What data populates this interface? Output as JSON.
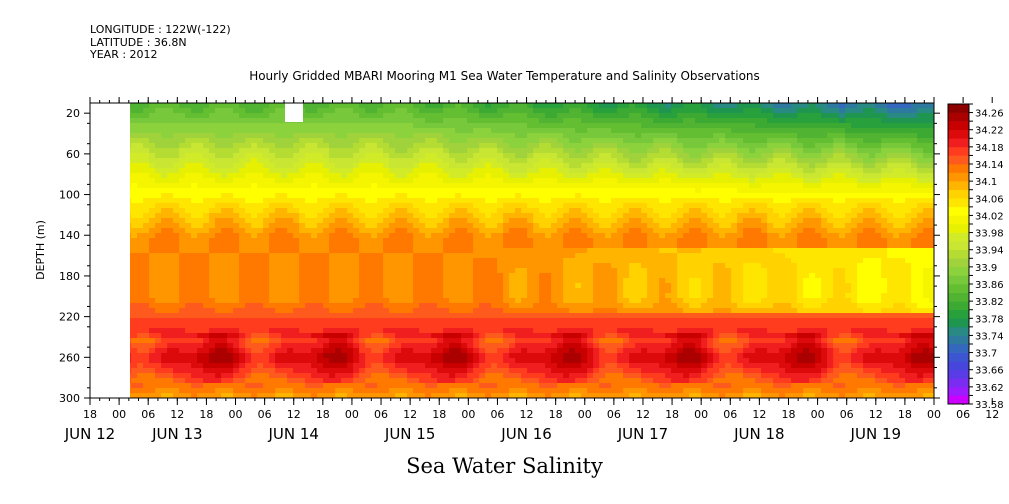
{
  "header": {
    "longitude": "LONGITUDE : 122W(-122)",
    "latitude": "LATITUDE : 36.8N",
    "year": "YEAR : 2012"
  },
  "chart_data": {
    "type": "heatmap",
    "title": "Hourly Gridded MBARI Mooring M1 Sea Water Temperature and Salinity Observations",
    "xlabel": "Sea Water Salinity",
    "ylabel": "DEPTH (m)",
    "x_start": "JUN 12 18:00",
    "x_range_hours": [
      0,
      174
    ],
    "data_start_hour": 6,
    "hour_ticks": [
      "18",
      "00",
      "06",
      "12",
      "18",
      "00",
      "06",
      "12",
      "18",
      "00",
      "06",
      "12",
      "18",
      "00",
      "06",
      "12",
      "18",
      "00",
      "06",
      "12",
      "18",
      "00",
      "06",
      "12",
      "18",
      "00",
      "06",
      "12",
      "18",
      "00",
      "06",
      "12"
    ],
    "date_labels": [
      {
        "text": "JUN 12",
        "hour": 0
      },
      {
        "text": "JUN 13",
        "hour": 18
      },
      {
        "text": "JUN 14",
        "hour": 42
      },
      {
        "text": "JUN 15",
        "hour": 66
      },
      {
        "text": "JUN 16",
        "hour": 90
      },
      {
        "text": "JUN 17",
        "hour": 114
      },
      {
        "text": "JUN 18",
        "hour": 138
      },
      {
        "text": "JUN 19",
        "hour": 162
      }
    ],
    "yticks": [
      20,
      60,
      100,
      140,
      180,
      220,
      260,
      300
    ],
    "ylim": [
      300,
      10
    ],
    "colorbar": {
      "levels": [
        33.58,
        33.6,
        33.62,
        33.64,
        33.66,
        33.68,
        33.7,
        33.72,
        33.74,
        33.76,
        33.78,
        33.8,
        33.82,
        33.84,
        33.86,
        33.88,
        33.9,
        33.92,
        33.94,
        33.96,
        33.98,
        34.0,
        34.02,
        34.04,
        34.06,
        34.08,
        34.1,
        34.12,
        34.14,
        34.16,
        34.18,
        34.2,
        34.22,
        34.24,
        34.26,
        34.28
      ],
      "labels": [
        "34.26",
        "34.22",
        "34.18",
        "34.14",
        "34.1",
        "34.06",
        "34.02",
        "33.98",
        "33.94",
        "33.9",
        "33.86",
        "33.82",
        "33.78",
        "33.74",
        "33.7",
        "33.66",
        "33.62",
        "33.58"
      ],
      "colors": [
        "#cc00ff",
        "#9b1cff",
        "#7a2cf0",
        "#5a3ce6",
        "#4646dc",
        "#3c56d2",
        "#3468be",
        "#2e7a9e",
        "#288a82",
        "#1e9650",
        "#28a03c",
        "#3caa32",
        "#50b432",
        "#64be32",
        "#78c83c",
        "#8cd23c",
        "#a0d23c",
        "#b4dc32",
        "#c8e632",
        "#d2eb28",
        "#e6f000",
        "#f5f500",
        "#ffff00",
        "#ffe600",
        "#ffd200",
        "#ffb400",
        "#ff9600",
        "#ff7800",
        "#ff5a1e",
        "#ff3c1e",
        "#f01e1e",
        "#dc0a0a",
        "#c80000",
        "#aa0000",
        "#8c0000"
      ]
    }
  }
}
